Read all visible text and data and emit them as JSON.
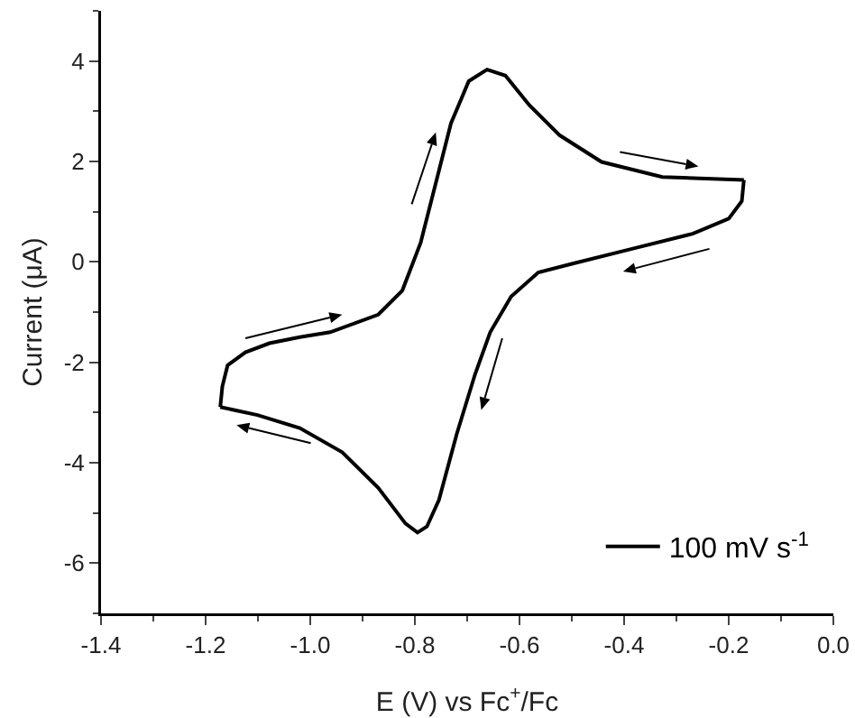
{
  "chart_data": {
    "type": "line",
    "xlabel": "E (V) vs Fc$^{+}$/Fc",
    "ylabel": "Current (μA)",
    "xlim": [
      -1.4,
      0
    ],
    "ylim": [
      -7,
      5
    ],
    "xticks": [
      -1.4,
      -1.2,
      {
        "value": -1,
        "label": "-1.0"
      },
      -0.8,
      -0.6,
      -0.4,
      -0.2,
      {
        "value": 0,
        "label": "0.0"
      }
    ],
    "yticks": [
      -6,
      -4,
      -2,
      0,
      2,
      4
    ],
    "grid": false,
    "legend": "bottom right",
    "marker": "none",
    "line_style": "solid",
    "series": [
      {
        "name": "100 mV s$^{-1}$",
        "color": "#000000",
        "x": [
          -1.172,
          -1.168,
          -1.158,
          -1.124,
          -1.078,
          -1.02,
          -0.962,
          -0.87,
          -0.824,
          -0.789,
          -0.76,
          -0.731,
          -0.697,
          -0.662,
          -0.627,
          -0.581,
          -0.523,
          -0.443,
          -0.327,
          -0.171
        ],
        "values": [
          -2.89,
          -2.48,
          -2.06,
          -1.8,
          -1.62,
          -1.5,
          -1.4,
          -1.05,
          -0.57,
          0.38,
          1.57,
          2.76,
          3.6,
          3.83,
          3.71,
          3.12,
          2.52,
          1.99,
          1.69,
          1.63
        ]
      },
      {
        "color": "#000000",
        "x": [
          -0.171,
          -0.175,
          -0.2,
          -0.269,
          -0.385,
          -0.5,
          -0.564,
          -0.616,
          -0.656,
          -0.685,
          -0.72,
          -0.754,
          -0.777,
          -0.795,
          -0.818,
          -0.87,
          -0.939,
          -1.02,
          -1.101,
          -1.172
        ],
        "values": [
          1.63,
          1.21,
          0.86,
          0.56,
          0.26,
          -0.04,
          -0.21,
          -0.69,
          -1.4,
          -2.24,
          -3.43,
          -4.74,
          -5.27,
          -5.39,
          -5.21,
          -4.5,
          -3.79,
          -3.31,
          -3.05,
          -2.89
        ]
      }
    ]
  }
}
